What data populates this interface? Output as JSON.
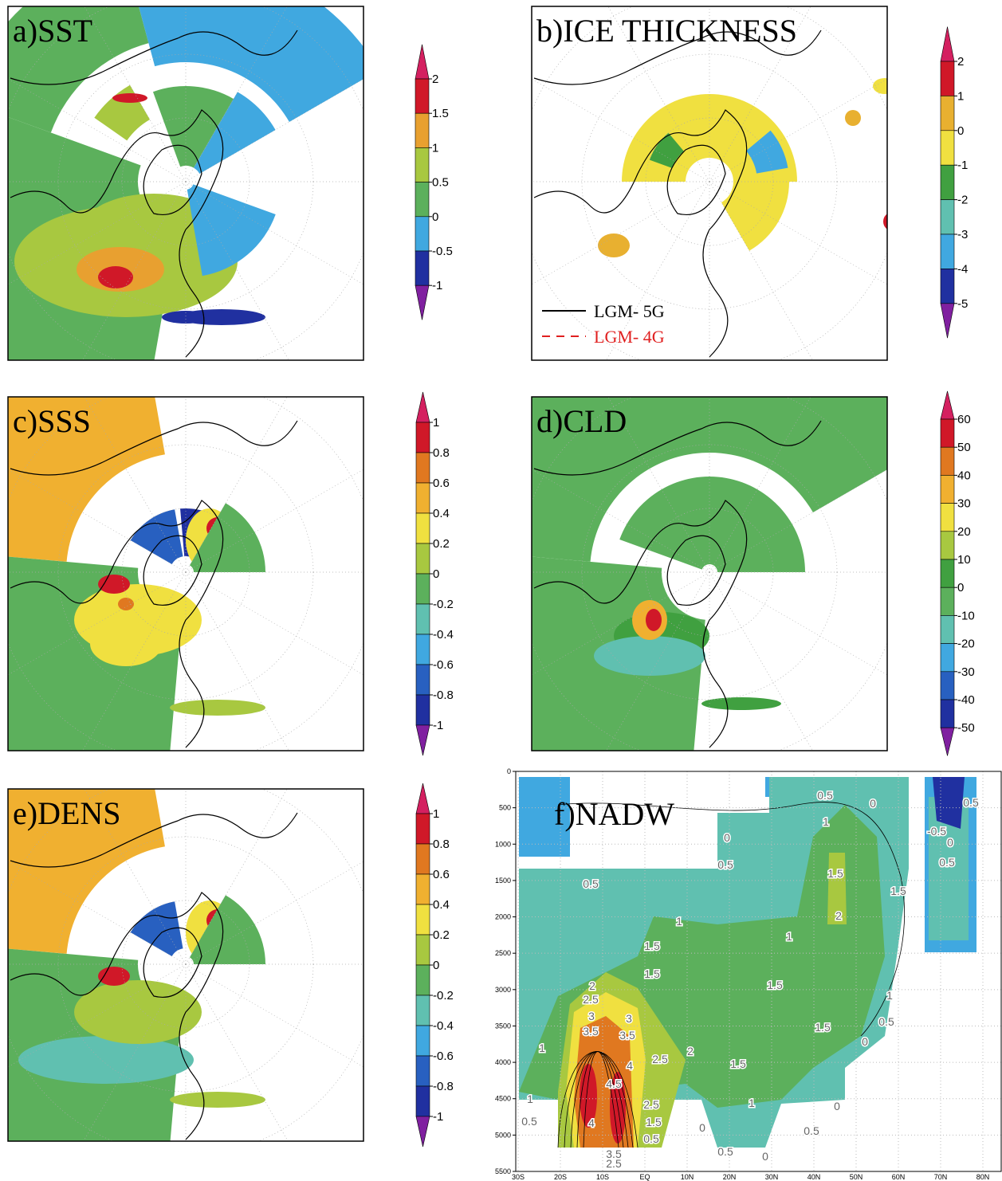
{
  "panels": [
    {
      "title": "a)SST",
      "colorbar": {
        "ticks": [
          2,
          1.5,
          1,
          0.5,
          0,
          -0.5,
          -1
        ],
        "colors": [
          "#d42060",
          "#d01828",
          "#e8a030",
          "#a8c840",
          "#5cb05c",
          "#40a8e0",
          "#2030a0",
          "#8020a0"
        ]
      }
    },
    {
      "title": "b)ICE THICKNESS",
      "colorbar": {
        "ticks": [
          2,
          1,
          0,
          -1,
          -2,
          -3,
          -4,
          -5
        ],
        "colors": [
          "#d42060",
          "#d01828",
          "#e8b030",
          "#f0e040",
          "#40a040",
          "#60c0b0",
          "#40a8e0",
          "#2030a0",
          "#8020a0"
        ]
      },
      "legend": [
        {
          "name": "LGM- 5G",
          "color": "#000000",
          "dash": false
        },
        {
          "name": "LGM- 4G",
          "color": "#e02020",
          "dash": true
        }
      ]
    },
    {
      "title": "c)SSS",
      "colorbar": {
        "ticks": [
          1,
          0.8,
          0.6,
          0.4,
          0.2,
          0,
          -0.2,
          -0.4,
          -0.6,
          -0.8,
          -1
        ],
        "colors": [
          "#d42060",
          "#d01828",
          "#e07820",
          "#f0b030",
          "#f0e040",
          "#a8c840",
          "#5cb05c",
          "#60c0b0",
          "#40a8e0",
          "#2860c0",
          "#2030a0",
          "#8020a0"
        ]
      }
    },
    {
      "title": "d)CLD",
      "colorbar": {
        "ticks": [
          60,
          50,
          40,
          30,
          20,
          10,
          0,
          -10,
          -20,
          -30,
          -40,
          -50
        ],
        "colors": [
          "#d42060",
          "#d01828",
          "#e07820",
          "#f0b030",
          "#f0e040",
          "#a8c840",
          "#40a040",
          "#5cb05c",
          "#60c0b0",
          "#40a8e0",
          "#2860c0",
          "#2030a0",
          "#8020a0"
        ]
      }
    },
    {
      "title": "e)DENS",
      "colorbar": {
        "ticks": [
          1,
          0.8,
          0.6,
          0.4,
          0.2,
          0,
          -0.2,
          -0.4,
          -0.6,
          -0.8,
          -1
        ],
        "colors": [
          "#d42060",
          "#d01828",
          "#e07820",
          "#f0b030",
          "#f0e040",
          "#a8c840",
          "#5cb05c",
          "#60c0b0",
          "#40a8e0",
          "#2860c0",
          "#2030a0",
          "#8020a0"
        ]
      }
    },
    {
      "title": "f)NADW",
      "ylim": [
        0,
        5500
      ],
      "yticks": [
        0,
        500,
        1000,
        1500,
        2000,
        2500,
        3000,
        3500,
        4000,
        4500,
        5000,
        5500
      ],
      "xticks": [
        "30S",
        "20S",
        "10S",
        "EQ",
        "10N",
        "20N",
        "30N",
        "40N",
        "50N",
        "60N",
        "70N",
        "80N"
      ],
      "contour_labels": [
        0.5,
        0,
        1,
        0.5,
        -0.5,
        0,
        0.5,
        0,
        0.5,
        0.5,
        1.5,
        1.5,
        2,
        1,
        1,
        1.5,
        1.5,
        1.5,
        2,
        2.5,
        3,
        3,
        3.5,
        3.5,
        1,
        1.5,
        0.5,
        0,
        1,
        2,
        2.5,
        1.5,
        4,
        4.5,
        1,
        0.5,
        2.5,
        1.5,
        0.5,
        1,
        0,
        0,
        0.5,
        4,
        0,
        0.5,
        3.5,
        2.5
      ]
    }
  ]
}
